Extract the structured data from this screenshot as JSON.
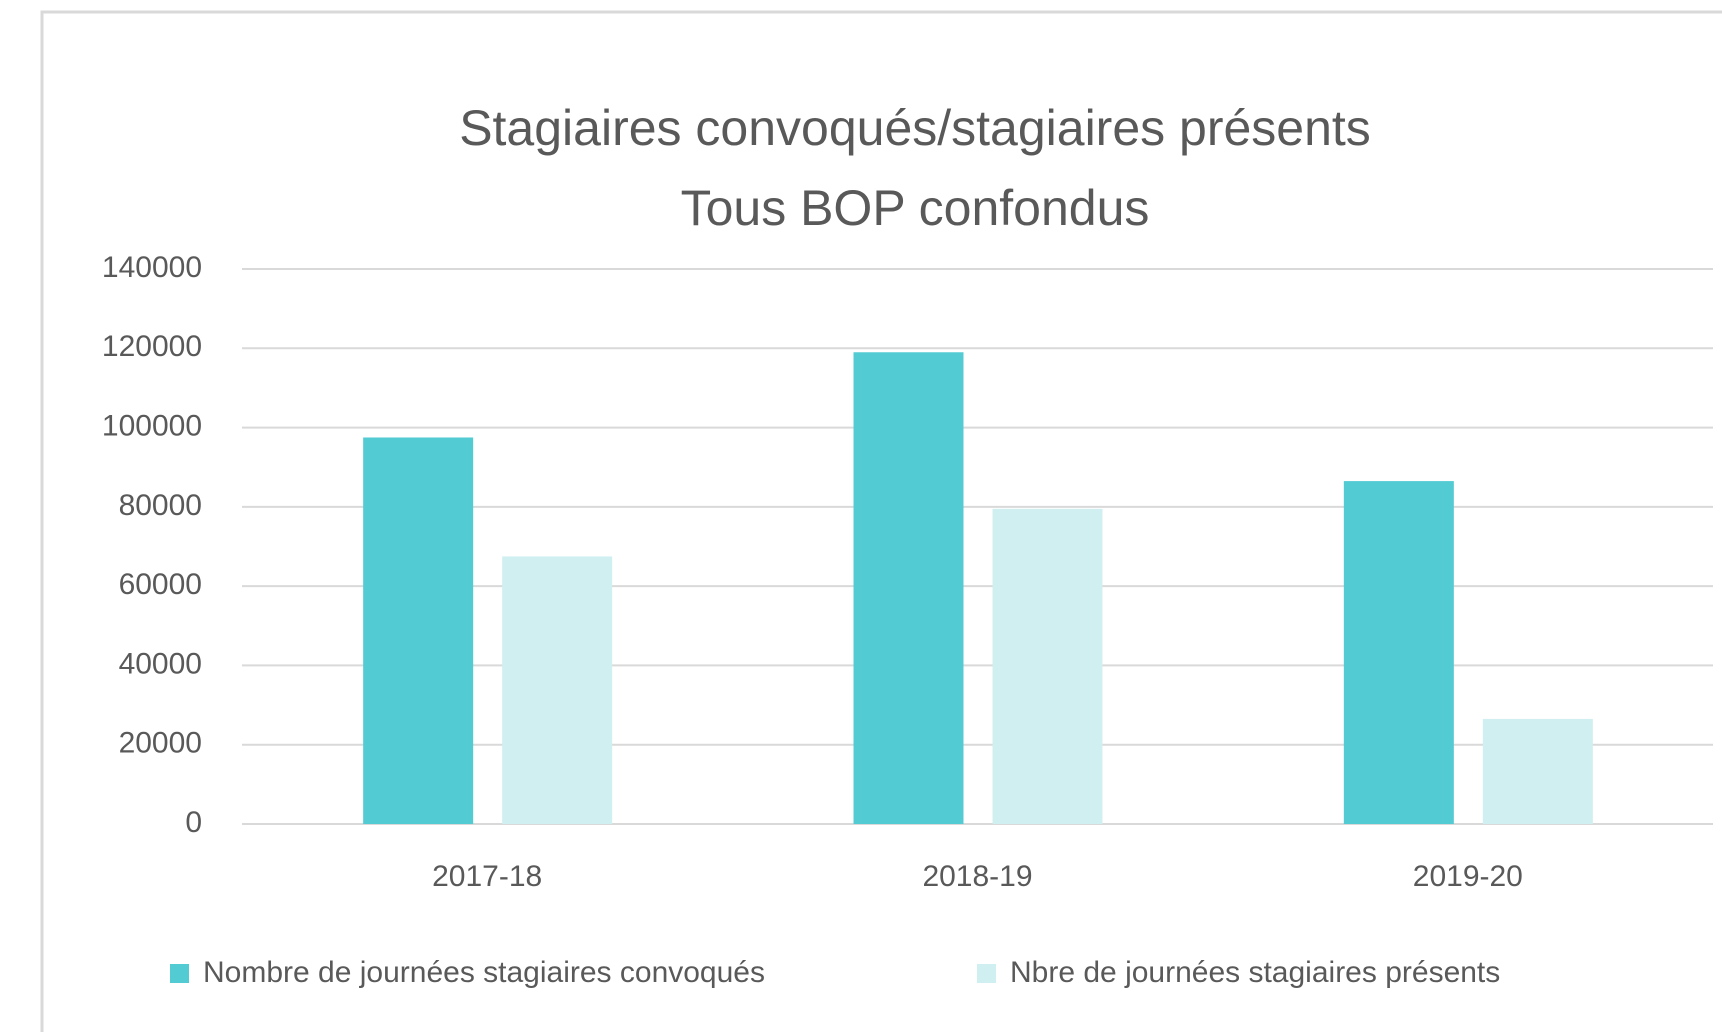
{
  "chart_data": {
    "type": "bar",
    "title": "Stagiaires convoqués/stagiaires présents",
    "subtitle": "Tous BOP confondus",
    "categories": [
      "2017-18",
      "2018-19",
      "2019-20"
    ],
    "series": [
      {
        "name": "Nombre de journées stagiaires convoqués",
        "color": "#53cbd3",
        "values": [
          97500,
          119000,
          86500
        ]
      },
      {
        "name": "Nbre de journées stagiaires présents",
        "color": "#d0eff1",
        "values": [
          67500,
          79500,
          26500
        ]
      }
    ],
    "ylim": [
      0,
      140000
    ],
    "yticks": [
      0,
      20000,
      40000,
      60000,
      80000,
      100000,
      120000,
      140000
    ],
    "grid": true,
    "legend": "bottom"
  }
}
